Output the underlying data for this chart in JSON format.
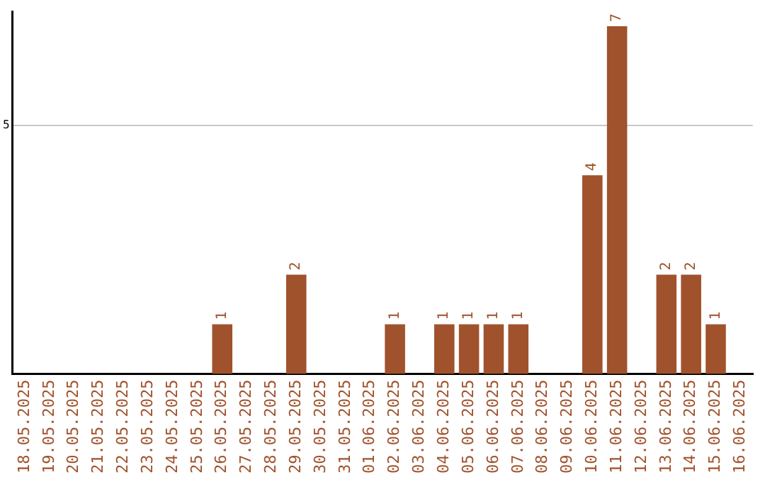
{
  "chart_data": {
    "type": "bar",
    "categories": [
      "18.05.2025",
      "19.05.2025",
      "20.05.2025",
      "21.05.2025",
      "22.05.2025",
      "23.05.2025",
      "24.05.2025",
      "25.05.2025",
      "26.05.2025",
      "27.05.2025",
      "28.05.2025",
      "29.05.2025",
      "30.05.2025",
      "31.05.2025",
      "01.06.2025",
      "02.06.2025",
      "03.06.2025",
      "04.06.2025",
      "05.06.2025",
      "06.06.2025",
      "07.06.2025",
      "08.06.2025",
      "09.06.2025",
      "10.06.2025",
      "11.06.2025",
      "12.06.2025",
      "13.06.2025",
      "14.06.2025",
      "15.06.2025",
      "16.06.2025"
    ],
    "values": [
      0,
      0,
      0,
      0,
      0,
      0,
      0,
      0,
      1,
      0,
      0,
      2,
      0,
      0,
      0,
      1,
      0,
      1,
      1,
      1,
      1,
      0,
      0,
      4,
      7,
      0,
      2,
      2,
      1,
      0
    ],
    "value_labels": [
      null,
      null,
      null,
      null,
      null,
      null,
      null,
      null,
      "1",
      null,
      null,
      "2",
      null,
      null,
      null,
      "1",
      null,
      "1",
      "1",
      "1",
      "1",
      null,
      null,
      "4",
      "7",
      null,
      "2",
      "2",
      "1",
      null
    ],
    "color": "#a0522d",
    "ylim": [
      0,
      7.3
    ],
    "yticks": [
      5
    ],
    "grid": "y",
    "legend": false
  }
}
